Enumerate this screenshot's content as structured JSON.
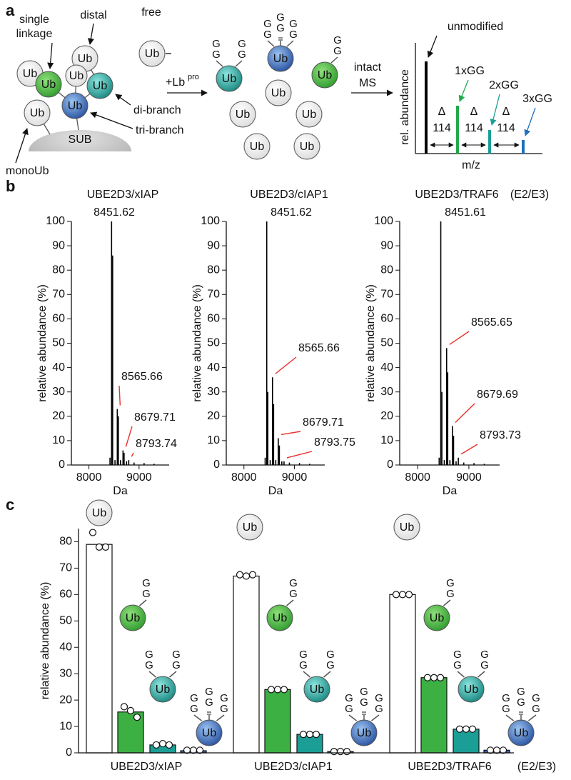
{
  "panel_labels": [
    "a",
    "b",
    "c"
  ],
  "icons": {
    "ub": "Ub",
    "g": "G",
    "sub": "SUB"
  },
  "panel_a": {
    "single_linkage": [
      "single",
      "linkage"
    ],
    "distal": "distal",
    "free": "free",
    "di_branch": "di-branch",
    "tri_branch": "tri-branch",
    "mono_ub": "monoUb",
    "enzyme": "+Lb",
    "enzyme_sup": "pro",
    "method": [
      "intact",
      "MS"
    ],
    "unmodified": "unmodified",
    "gg_labels": [
      "1xGG",
      "2xGG",
      "3xGG"
    ],
    "delta": "Δ",
    "delta_mass": "114",
    "y_label": "rel. abundance",
    "x_label": "m/z"
  },
  "chart_data": [
    {
      "type": "spectrum",
      "title": "UBE2D3/xIAP",
      "x_label": "Da",
      "y_label": "relative abundance (%)",
      "color": "#000000",
      "x": [
        8451.62,
        8565.66,
        8679.71,
        8793.74,
        8473,
        8587,
        8701,
        8420,
        8520,
        8630,
        8750,
        8900,
        9100,
        9300
      ],
      "values": [
        100,
        23,
        6,
        2,
        86,
        20,
        5,
        3,
        2,
        2,
        1.5,
        1,
        0.8,
        0.5
      ],
      "xlim": [
        7650,
        9600
      ],
      "xticks": [
        8000,
        9000
      ],
      "ylim": [
        0,
        100
      ],
      "yticks": [
        0,
        10,
        20,
        30,
        40,
        50,
        60,
        70,
        80,
        90,
        100
      ]
    },
    {
      "type": "spectrum",
      "title": "UBE2D3/cIAP1",
      "x_label": "Da",
      "y_label": "relative abundance (%)",
      "color": "#000000",
      "x": [
        8451.62,
        8565.66,
        8679.71,
        8793.75,
        8473,
        8587,
        8701,
        8420,
        8520,
        8630,
        8750,
        8900,
        9100,
        9300
      ],
      "values": [
        100,
        36,
        11,
        1.5,
        30,
        25,
        8,
        3,
        2,
        2,
        1.5,
        1,
        0.8,
        0.5
      ],
      "xlim": [
        7650,
        9600
      ],
      "xticks": [
        8000,
        9000
      ],
      "ylim": [
        0,
        100
      ],
      "yticks": [
        0,
        10,
        20,
        30,
        40,
        50,
        60,
        70,
        80,
        90,
        100
      ]
    },
    {
      "type": "spectrum",
      "title": "UBE2D3/TRAF6",
      "annotation": "(E2/E3)",
      "x_label": "Da",
      "y_label": "relative abundance (%)",
      "color": "#000000",
      "x": [
        8451.61,
        8565.65,
        8679.69,
        8793.73,
        8473,
        8587,
        8701,
        8420,
        8520,
        8630,
        8750,
        8900,
        9100,
        9300
      ],
      "values": [
        100,
        48,
        16,
        3,
        30,
        38,
        12,
        3,
        2,
        2,
        1.5,
        1,
        0.8,
        0.5
      ],
      "xlim": [
        7650,
        9600
      ],
      "xticks": [
        8000,
        9000
      ],
      "ylim": [
        0,
        100
      ],
      "yticks": [
        0,
        10,
        20,
        30,
        40,
        50,
        60,
        70,
        80,
        90,
        100
      ]
    },
    {
      "type": "bar",
      "y_label": "relative abundance (%)",
      "annotation": "(E2/E3)",
      "categories": [
        "UBE2D3/xIAP",
        "UBE2D3/cIAP1",
        "UBE2D3/TRAF6"
      ],
      "series": [
        {
          "color": "#ffffff",
          "values": [
            79,
            67,
            60
          ],
          "replicates": [
            [
              83.5,
              78,
              78
            ],
            [
              67.5,
              67,
              67.5
            ],
            [
              60,
              60,
              60
            ]
          ]
        },
        {
          "color": "#3cb043",
          "values": [
            15.5,
            24,
            28.5
          ],
          "replicates": [
            [
              17.5,
              16,
              13.5
            ],
            [
              24,
              24,
              24
            ],
            [
              28.5,
              28.5,
              28.5
            ]
          ]
        },
        {
          "color": "#1a9e96",
          "values": [
            3,
            7,
            9
          ],
          "replicates": [
            [
              3,
              3.5,
              3
            ],
            [
              7,
              7,
              7
            ],
            [
              9,
              9,
              9
            ]
          ]
        },
        {
          "color": "#2f62b8",
          "values": [
            0.8,
            0.5,
            1
          ],
          "replicates": [
            [
              1,
              1,
              1
            ],
            [
              0.5,
              0.5,
              0.5
            ],
            [
              1,
              1,
              1
            ]
          ]
        }
      ],
      "ylim": [
        0,
        85
      ],
      "yticks": [
        0,
        10,
        20,
        30,
        40,
        50,
        60,
        70,
        80
      ]
    }
  ]
}
